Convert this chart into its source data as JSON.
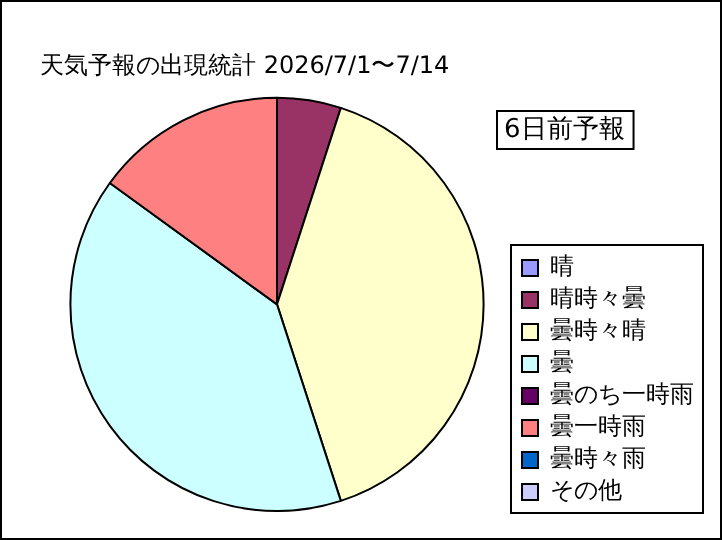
{
  "chart_data": {
    "type": "pie",
    "title": "天気予報の出現統計 2026/7/1〜7/14",
    "categories": [
      "晴",
      "晴時々曇",
      "曇時々晴",
      "曇",
      "曇のち一時雨",
      "曇一時雨",
      "曇時々雨",
      "その他"
    ],
    "values": [
      0,
      5,
      40,
      40,
      0,
      15,
      0,
      0
    ],
    "colors": [
      "#9999ff",
      "#993366",
      "#ffffcc",
      "#ccffff",
      "#660066",
      "#ff8080",
      "#0066cc",
      "#ccccff"
    ],
    "annotations": [
      "6日前予報"
    ],
    "legend": "right"
  }
}
